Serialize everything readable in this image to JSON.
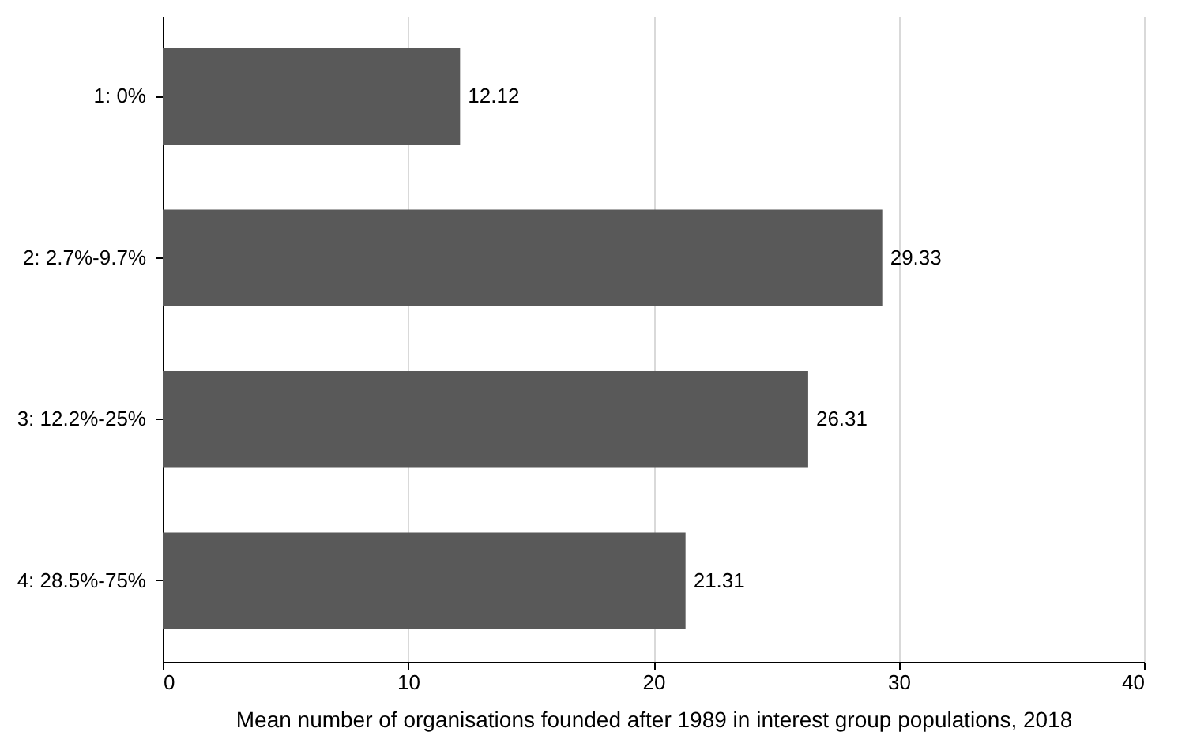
{
  "chart_data": {
    "type": "bar",
    "orientation": "horizontal",
    "categories": [
      "1: 0%",
      "2: 2.7%-9.7%",
      "3: 12.2%-25%",
      "4: 28.5%-75%"
    ],
    "values": [
      12.12,
      29.33,
      26.31,
      21.31
    ],
    "color": "#595959",
    "xlabel": "Mean number of organisations founded after 1989 in interest group populations, 2018",
    "xlim": [
      0,
      40
    ],
    "xticks": [
      0,
      10,
      20,
      30,
      40
    ],
    "grid": "x",
    "data_labels": true
  }
}
